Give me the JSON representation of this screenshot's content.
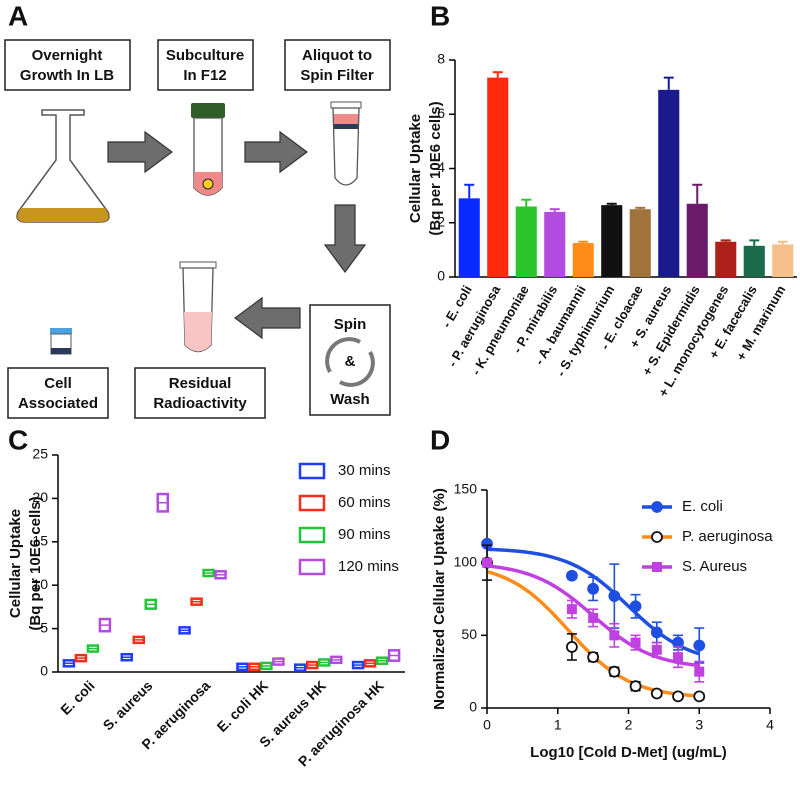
{
  "diagram": {
    "label": "A",
    "boxes": [
      {
        "lines": [
          "Overnight",
          "Growth In LB"
        ]
      },
      {
        "lines": [
          "Subculture",
          "In F12"
        ]
      },
      {
        "lines": [
          "Aliquot to",
          "Spin Filter"
        ]
      },
      {
        "lines": [
          "Spin",
          "&",
          "Wash"
        ]
      },
      {
        "lines": [
          "Residual",
          "Radioactivity"
        ]
      },
      {
        "lines": [
          "Cell",
          "Associated"
        ]
      }
    ]
  },
  "chart_data": [
    {
      "type": "bar",
      "panel": "B",
      "ylabel": [
        "Cellular Uptake",
        "(Bq per 10E6 cells)"
      ],
      "categories": [
        "- E. coli",
        "- P. aeruginosa",
        "- K. pneumoniae",
        "- P. mirabilis",
        "- A. baumannii",
        "- S. typhimurium",
        "- E. cloacae",
        "+ S. aureus",
        "+ S. Epidermidis",
        "+ L. monocytogenes",
        "+ E. facecalis",
        "+ M. marinum"
      ],
      "values": [
        2.9,
        7.35,
        2.6,
        2.4,
        1.25,
        2.65,
        2.5,
        6.9,
        2.7,
        1.3,
        1.15,
        1.2
      ],
      "errors": [
        0.5,
        0.2,
        0.25,
        0.1,
        0.05,
        0.05,
        0.05,
        0.45,
        0.7,
        0.05,
        0.2,
        0.1
      ],
      "colors": [
        "#0a2bff",
        "#ff2a0a",
        "#2bc42b",
        "#b44be0",
        "#ff8c1a",
        "#111111",
        "#a0733a",
        "#1a1a8c",
        "#6b1a6b",
        "#b0201a",
        "#1a6b4a",
        "#f5c08a"
      ],
      "ylim": [
        0,
        8
      ],
      "yticks": [
        0,
        2,
        4,
        6,
        8
      ],
      "grid": false
    },
    {
      "type": "box",
      "panel": "C",
      "ylabel": [
        "Cellular Uptake",
        "(Bq per 10E6 cells)"
      ],
      "categories": [
        "E. coli",
        "S. aureus",
        "P. aeruginosa",
        "E. coli HK",
        "S. aureus HK",
        "P. aeruginosa HK"
      ],
      "series": [
        {
          "name": "30 mins",
          "color": "#1f3cff",
          "values": [
            1.0,
            1.7,
            4.8,
            0.6,
            0.5,
            0.8
          ],
          "errors": [
            0.1,
            0.1,
            0.15,
            0.1,
            0.1,
            0.2
          ]
        },
        {
          "name": "60 mins",
          "color": "#ff2a1a",
          "values": [
            1.6,
            3.7,
            8.1,
            0.6,
            0.8,
            1.0
          ],
          "errors": [
            0.1,
            0.15,
            0.15,
            0.1,
            0.2,
            0.3
          ]
        },
        {
          "name": "90 mins",
          "color": "#22c43a",
          "values": [
            2.7,
            7.8,
            11.4,
            0.7,
            1.1,
            1.3
          ],
          "errors": [
            0.2,
            0.5,
            0.3,
            0.1,
            0.2,
            0.3
          ]
        },
        {
          "name": "120 mins",
          "color": "#b44be0",
          "values": [
            5.4,
            19.5,
            11.2,
            1.2,
            1.4,
            1.9
          ],
          "errors": [
            0.7,
            1.0,
            0.4,
            0.2,
            0.3,
            0.6
          ]
        }
      ],
      "ylim": [
        0,
        25
      ],
      "yticks": [
        0,
        5,
        10,
        15,
        20,
        25
      ],
      "grid": false,
      "legend": "top-right"
    },
    {
      "type": "scatter",
      "panel": "D",
      "xlabel": "Log10 [Cold D-Met] (ug/mL)",
      "ylabel": "Normalized Cellular Uptake (%)",
      "series": [
        {
          "name": "E. coli",
          "color": "#1f4fe0",
          "marker": "circle",
          "x": [
            0,
            1.2,
            1.5,
            1.8,
            2.1,
            2.4,
            2.7,
            3.0
          ],
          "values": [
            113,
            91,
            82,
            77,
            70,
            52,
            45,
            43
          ],
          "errors": [
            0,
            2,
            8,
            22,
            8,
            7,
            5,
            12
          ],
          "fit": {
            "top": 110,
            "bottom": 30,
            "logec50": 2.0,
            "hill": 1
          }
        },
        {
          "name": "P. aeruginosa",
          "color": "#ff8c1a",
          "marker": "open-circle",
          "x": [
            0,
            1.2,
            1.5,
            1.8,
            2.1,
            2.4,
            2.7,
            3.0
          ],
          "values": [
            100,
            42,
            35,
            25,
            15,
            10,
            8,
            8
          ],
          "errors": [
            12,
            9,
            3,
            3,
            3,
            2,
            2,
            2
          ],
          "fit": {
            "top": 100,
            "bottom": 7,
            "logec50": 1.15,
            "hill": 1
          }
        },
        {
          "name": "S. Aureus",
          "color": "#c040e0",
          "marker": "square",
          "x": [
            0,
            1.2,
            1.5,
            1.8,
            2.1,
            2.4,
            2.7,
            3.0
          ],
          "values": [
            100,
            68,
            62,
            50,
            45,
            40,
            35,
            25
          ],
          "errors": [
            0,
            6,
            6,
            8,
            5,
            5,
            7,
            7
          ],
          "fit": {
            "top": 100,
            "bottom": 27,
            "logec50": 1.5,
            "hill": 1
          }
        }
      ],
      "xlim": [
        0,
        4
      ],
      "xticks": [
        0,
        1,
        2,
        3,
        4
      ],
      "ylim": [
        0,
        150
      ],
      "yticks": [
        0,
        50,
        100,
        150
      ],
      "grid": false,
      "legend": "top-right"
    }
  ]
}
